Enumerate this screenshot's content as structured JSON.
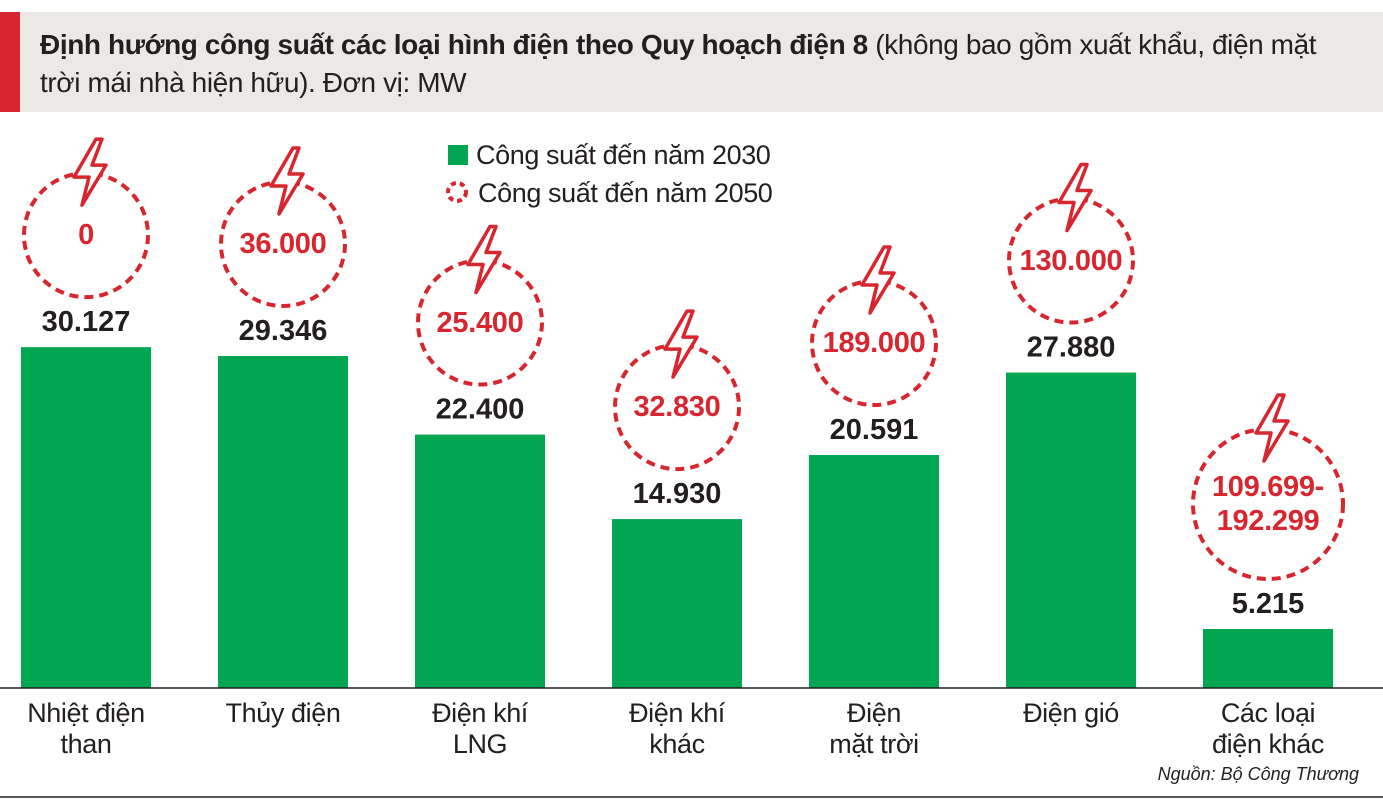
{
  "chart_data": {
    "type": "bar",
    "title": "Định hướng công suất các loại hình điện theo Quy hoạch điện 8",
    "subtitle": "(không bao gồm xuất khẩu, điện mặt trời mái nhà hiện hữu). Đơn vị: MW",
    "categories": [
      "Nhiệt điện\nthan",
      "Thủy điện",
      "Điện khí\nLNG",
      "Điện khí\nkhác",
      "Điện\nmặt trời",
      "Điện gió",
      "Các loại\nđiện khác"
    ],
    "series": [
      {
        "name": "Công suất đến năm 2030",
        "color": "#00a651",
        "values": [
          30127,
          29346,
          22400,
          14930,
          20591,
          27880,
          5215
        ],
        "value_labels": [
          "30.127",
          "29.346",
          "22.400",
          "14.930",
          "20.591",
          "27.880",
          "5.215"
        ]
      },
      {
        "name": "Công suất đến năm 2050",
        "color": "#d8262f",
        "values": [
          0,
          36000,
          25400,
          32830,
          189000,
          130000,
          [
            109699,
            192299
          ]
        ],
        "value_labels": [
          "0",
          "36.000",
          "25.400",
          "32.830",
          "189.000",
          "130.000",
          "109.699-192.299"
        ]
      }
    ],
    "ylim": [
      0,
      35000
    ],
    "source": "Nguồn: Bộ Công Thương"
  }
}
